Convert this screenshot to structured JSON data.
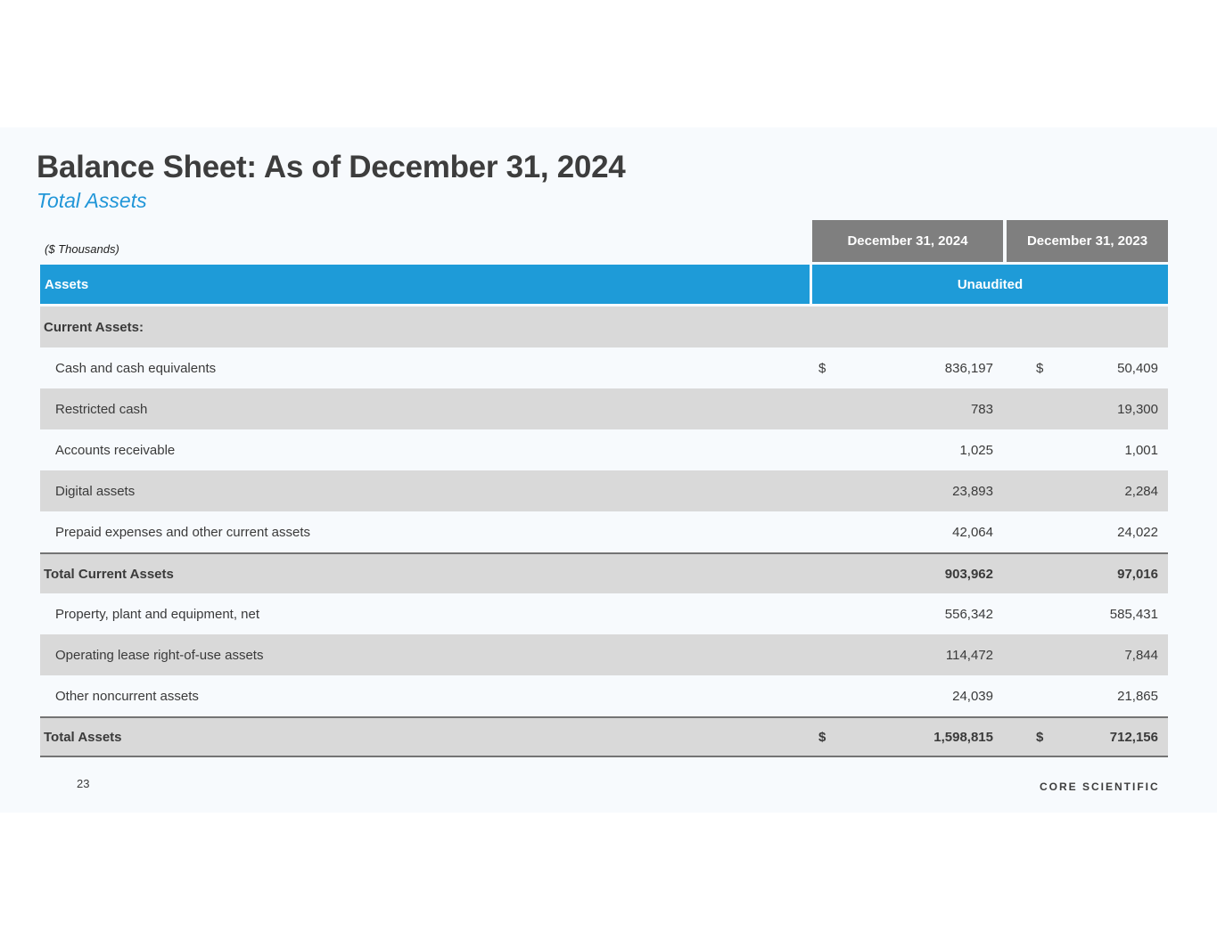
{
  "slide": {
    "title_bold": "Balance Sheet:",
    "title_rest": " As of December 31, 2024",
    "subtitle": "Total Assets",
    "units_note": "($ Thousands)",
    "page_number": "23",
    "logo": "CORE SCIENTIFIC"
  },
  "colors": {
    "accent_blue": "#1e9bd8",
    "header_gray": "#7f7f7f",
    "row_gray": "#d9d9d9",
    "slide_background": "#f7fafd"
  },
  "table": {
    "col_headers": [
      "December 31, 2024",
      "December 31, 2023"
    ],
    "section_header": "Assets",
    "unaudited_label": "Unaudited",
    "rows": [
      {
        "label": "Current Assets:",
        "style": "section",
        "d1": "",
        "v2024": "",
        "d2": "",
        "v2023": ""
      },
      {
        "label": "Cash and cash equivalents",
        "style": "light",
        "d1": "$",
        "v2024": "836,197",
        "d2": "$",
        "v2023": "50,409"
      },
      {
        "label": "Restricted cash",
        "style": "gray",
        "d1": "",
        "v2024": "783",
        "d2": "",
        "v2023": "19,300"
      },
      {
        "label": "Accounts receivable",
        "style": "light",
        "d1": "",
        "v2024": "1,025",
        "d2": "",
        "v2023": "1,001"
      },
      {
        "label": "Digital assets",
        "style": "gray",
        "d1": "",
        "v2024": "23,893",
        "d2": "",
        "v2023": "2,284"
      },
      {
        "label": "Prepaid expenses and other current assets",
        "style": "light",
        "d1": "",
        "v2024": "42,064",
        "d2": "",
        "v2023": "24,022"
      },
      {
        "label": "Total Current Assets",
        "style": "total",
        "d1": "",
        "v2024": "903,962",
        "d2": "",
        "v2023": "97,016"
      },
      {
        "label": "Property, plant and equipment, net",
        "style": "light",
        "d1": "",
        "v2024": "556,342",
        "d2": "",
        "v2023": "585,431"
      },
      {
        "label": "Operating lease right-of-use assets",
        "style": "gray",
        "d1": "",
        "v2024": "114,472",
        "d2": "",
        "v2023": "7,844"
      },
      {
        "label": "Other noncurrent assets",
        "style": "light",
        "d1": "",
        "v2024": "24,039",
        "d2": "",
        "v2023": "21,865"
      },
      {
        "label": "Total Assets",
        "style": "grand",
        "d1": "$",
        "v2024": "1,598,815",
        "d2": "$",
        "v2023": "712,156"
      }
    ]
  }
}
